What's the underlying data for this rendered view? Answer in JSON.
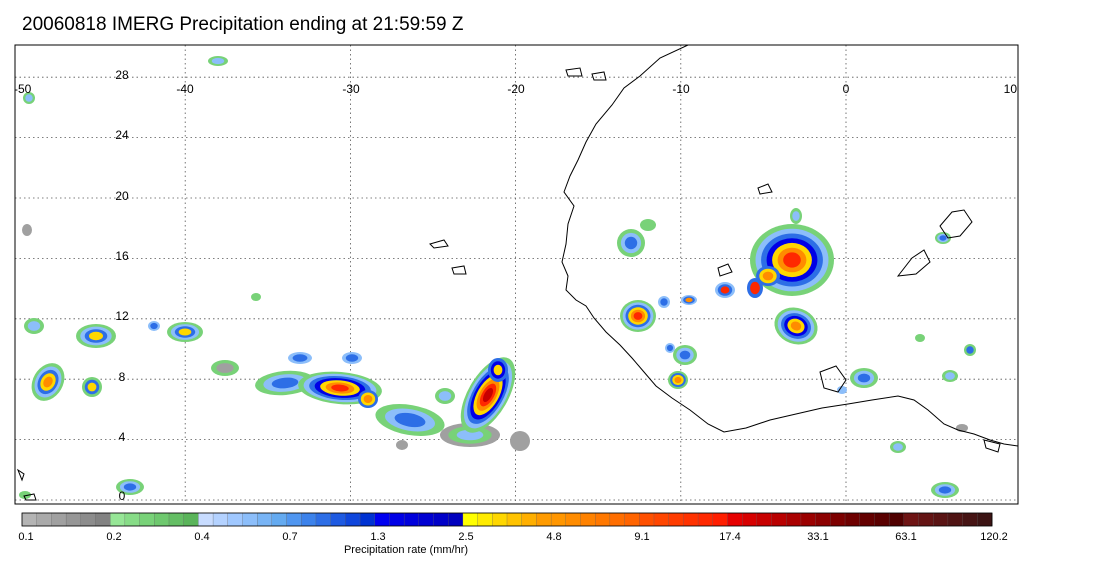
{
  "map": {
    "title": "20060818 IMERG Precipitation ending at 21:59:59 Z",
    "lon_ticks": [
      "-50",
      "-40",
      "-30",
      "-20",
      "-10",
      "0",
      "10"
    ],
    "lat_ticks": [
      "28",
      "24",
      "20",
      "16",
      "12",
      "8",
      "4",
      "0"
    ],
    "lon_range": [
      -50,
      10
    ],
    "lat_range": [
      -0.5,
      30
    ],
    "gridlines": "dotted",
    "coastline_color": "#000000"
  },
  "colorbar": {
    "title": "Precipitation rate (mm/hr)",
    "labels": [
      "0.1",
      "0.2",
      "0.4",
      "0.7",
      "1.3",
      "2.5",
      "4.8",
      "9.1",
      "17.4",
      "33.1",
      "63.1",
      "120.2"
    ],
    "colors": [
      "#b4b4b4",
      "#aaaaaa",
      "#a0a0a0",
      "#969696",
      "#8c8c8c",
      "#828282",
      "#96e696",
      "#87dc87",
      "#78d278",
      "#6ec86e",
      "#64be64",
      "#5ab45a",
      "#c8dcff",
      "#b4d2ff",
      "#a0c8ff",
      "#8cbefa",
      "#78b4f5",
      "#64aaf0",
      "#5096f0",
      "#3c82eb",
      "#2d6ee6",
      "#1e5ae1",
      "#0f46dc",
      "#0032d2",
      "#0000f0",
      "#0000e6",
      "#0000dc",
      "#0000d2",
      "#0000c8",
      "#0000be",
      "#ffff00",
      "#ffeb00",
      "#ffd700",
      "#ffc300",
      "#ffaf00",
      "#ff9b00",
      "#ff9600",
      "#ff8c00",
      "#ff8200",
      "#ff7800",
      "#ff6e00",
      "#ff6400",
      "#ff5000",
      "#ff4600",
      "#ff3c00",
      "#ff3200",
      "#ff2800",
      "#ff1e00",
      "#e60000",
      "#d70000",
      "#c80000",
      "#b90000",
      "#aa0000",
      "#9b0000",
      "#8c0000",
      "#7d0000",
      "#6e0000",
      "#640000",
      "#5a0000",
      "#500000",
      "#6e1414",
      "#641414",
      "#5a1414",
      "#501414",
      "#461414",
      "#3c1414"
    ]
  }
}
